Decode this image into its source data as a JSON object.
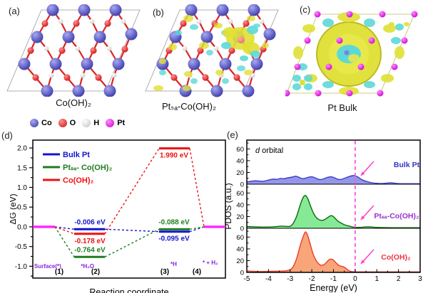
{
  "figure": {
    "letters": {
      "a": "(a)",
      "b": "(b)",
      "c": "(c)",
      "d": "(d)",
      "e": "(e)"
    }
  },
  "panels": {
    "a": {
      "caption": "Co(OH)₂"
    },
    "b": {
      "caption": "Ptₛₐ-Co(OH)₂"
    },
    "c": {
      "caption": "Pt Bulk"
    }
  },
  "atom_legend": {
    "items": [
      {
        "label": "Co",
        "color_light": "#a8a8f0",
        "color_dark": "#3434a8"
      },
      {
        "label": "O",
        "color_light": "#ff9090",
        "color_dark": "#cc0f0f"
      },
      {
        "label": "H",
        "color_light": "#ffffff",
        "color_dark": "#c0c0c0"
      },
      {
        "label": "Pt",
        "color_light": "#ff8aff",
        "color_dark": "#cc00cc"
      }
    ]
  },
  "colors": {
    "co_light": "#a8a8f0",
    "co_dark": "#3434a8",
    "o_light": "#ff9090",
    "o_dark": "#cc0f0f",
    "h_light": "#ffffff",
    "h_dark": "#c8c8c8",
    "pt_light": "#ff8aff",
    "pt_dark": "#cc00cc",
    "bond": "#dd2222",
    "iso_yellow": "#e0e034",
    "iso_cyan": "#5cd8d8",
    "cell_edge": "#999999"
  },
  "chart_data": [
    {
      "id": "free_energy_diagram",
      "type": "line",
      "xlabel": "Reaction coordinate",
      "ylabel": "ΔG (eV)",
      "ylim": [
        -1.3,
        2.2
      ],
      "yticks": [
        2.0,
        1.5,
        1.0,
        0.5,
        0.0,
        -0.5,
        -1.0
      ],
      "xticks": [
        "(1)",
        "(2)",
        "(3)",
        "(4)"
      ],
      "step_species": [
        "Surface(*)",
        "*H₂O",
        "*H",
        "* + H₂"
      ],
      "species_color": "#8822dd",
      "endpoints": {
        "value": 0.0,
        "color": "#ff22ff"
      },
      "series": [
        {
          "name": "Bulk Pt",
          "color": "#1414cc",
          "values": [
            0.0,
            -0.006,
            -0.095,
            0.0
          ],
          "labels": {
            "step2": "-0.006 eV",
            "step3": "-0.095 eV"
          },
          "label_pos": {
            "step2": "above",
            "step3": "below"
          }
        },
        {
          "name": "Ptₛₐ- Co(OH)₂",
          "color": "#1e7d1e",
          "values": [
            0.0,
            -0.764,
            -0.088,
            0.0
          ],
          "labels": {
            "step2": "-0.764 eV",
            "step3": "-0.088 eV"
          },
          "label_pos": {
            "step2": "above",
            "step3": "above"
          }
        },
        {
          "name": "Co(OH)₂",
          "color": "#ee1111",
          "values": [
            0.0,
            -0.178,
            1.99,
            0.0
          ],
          "labels": {
            "step2": "-0.178 eV",
            "step3": "1.990 eV"
          },
          "label_pos": {
            "step2": "below",
            "step3": "below"
          }
        }
      ],
      "legend_position": "top-left",
      "grid": false
    },
    {
      "id": "pdos",
      "type": "area",
      "xlabel": "Energy (eV)",
      "ylabel": "PDOS (a.u.)",
      "xlim": [
        -5,
        3
      ],
      "xticks": [
        -5,
        -4,
        -3,
        -2,
        -1,
        0,
        1,
        2,
        3
      ],
      "ylim": [
        0,
        75
      ],
      "yticks": [
        0,
        20,
        40,
        60
      ],
      "orbital_label": {
        "italic": "d",
        "rest": " orbital"
      },
      "fermi_line": {
        "x": 0,
        "color": "#ff55dd",
        "style": "dashed"
      },
      "arrow_color": "#ff44cc",
      "panels": [
        {
          "name": "Bulk Pt",
          "label_color": "#3333cc",
          "line_color": "#3b3bd0",
          "fill_color": "#9090e8",
          "points": [
            [
              -5,
              4
            ],
            [
              -4.8,
              5
            ],
            [
              -4.6,
              6
            ],
            [
              -4.4,
              5
            ],
            [
              -4.2,
              5
            ],
            [
              -4.0,
              7
            ],
            [
              -3.8,
              9
            ],
            [
              -3.6,
              8
            ],
            [
              -3.45,
              10
            ],
            [
              -3.3,
              9
            ],
            [
              -3.1,
              11
            ],
            [
              -2.9,
              12
            ],
            [
              -2.75,
              14
            ],
            [
              -2.6,
              12
            ],
            [
              -2.45,
              9
            ],
            [
              -2.3,
              10
            ],
            [
              -2.15,
              12
            ],
            [
              -2.0,
              13
            ],
            [
              -1.85,
              11
            ],
            [
              -1.7,
              8
            ],
            [
              -1.55,
              8
            ],
            [
              -1.4,
              10
            ],
            [
              -1.25,
              12
            ],
            [
              -1.1,
              13
            ],
            [
              -0.95,
              11
            ],
            [
              -0.8,
              8
            ],
            [
              -0.65,
              8
            ],
            [
              -0.5,
              10
            ],
            [
              -0.35,
              12
            ],
            [
              -0.2,
              14
            ],
            [
              -0.05,
              15
            ],
            [
              0.1,
              13
            ],
            [
              0.25,
              9
            ],
            [
              0.4,
              6
            ],
            [
              0.6,
              4
            ],
            [
              0.8,
              2
            ],
            [
              1.0,
              1.5
            ],
            [
              1.2,
              1
            ],
            [
              1.4,
              1.5
            ],
            [
              1.6,
              2.5
            ],
            [
              1.75,
              2
            ],
            [
              2.0,
              1
            ],
            [
              2.3,
              0.8
            ],
            [
              2.6,
              0.8
            ],
            [
              3,
              0.8
            ]
          ]
        },
        {
          "name": "Ptₛₐ-Co(OH)₂",
          "label_color": "#9933cc",
          "line_color": "#0b6b0b",
          "fill_color": "#7fe890",
          "points": [
            [
              -5,
              3
            ],
            [
              -4.5,
              2
            ],
            [
              -4.0,
              2
            ],
            [
              -3.7,
              2.5
            ],
            [
              -3.4,
              4
            ],
            [
              -3.2,
              3
            ],
            [
              -3.0,
              3
            ],
            [
              -2.9,
              6
            ],
            [
              -2.8,
              12
            ],
            [
              -2.7,
              20
            ],
            [
              -2.6,
              32
            ],
            [
              -2.5,
              44
            ],
            [
              -2.4,
              53
            ],
            [
              -2.3,
              57
            ],
            [
              -2.2,
              52
            ],
            [
              -2.1,
              42
            ],
            [
              -2.0,
              32
            ],
            [
              -1.9,
              24
            ],
            [
              -1.8,
              18
            ],
            [
              -1.65,
              14
            ],
            [
              -1.5,
              13
            ],
            [
              -1.35,
              16
            ],
            [
              -1.2,
              20
            ],
            [
              -1.1,
              22
            ],
            [
              -1.0,
              20
            ],
            [
              -0.9,
              16
            ],
            [
              -0.8,
              12
            ],
            [
              -0.7,
              10
            ],
            [
              -0.6,
              8
            ],
            [
              -0.5,
              6
            ],
            [
              -0.4,
              5
            ],
            [
              -0.3,
              4
            ],
            [
              -0.2,
              3
            ],
            [
              -0.1,
              2
            ],
            [
              0,
              1.5
            ],
            [
              0.2,
              1.5
            ],
            [
              0.4,
              2
            ],
            [
              0.6,
              2.5
            ],
            [
              0.8,
              2
            ],
            [
              1.0,
              1.5
            ],
            [
              1.5,
              1
            ],
            [
              2.0,
              1
            ],
            [
              2.5,
              1
            ],
            [
              3,
              1
            ]
          ]
        },
        {
          "name": "Co(OH)₂",
          "label_color": "#ee3344",
          "line_color": "#ee3b2a",
          "fill_color": "#f7a072",
          "points": [
            [
              -5,
              2.5
            ],
            [
              -4.6,
              1.5
            ],
            [
              -4.2,
              1.5
            ],
            [
              -3.8,
              2
            ],
            [
              -3.4,
              2
            ],
            [
              -3.1,
              3
            ],
            [
              -2.95,
              5
            ],
            [
              -2.85,
              10
            ],
            [
              -2.75,
              18
            ],
            [
              -2.65,
              30
            ],
            [
              -2.55,
              44
            ],
            [
              -2.45,
              56
            ],
            [
              -2.35,
              66
            ],
            [
              -2.28,
              70
            ],
            [
              -2.2,
              64
            ],
            [
              -2.1,
              52
            ],
            [
              -2.0,
              38
            ],
            [
              -1.9,
              27
            ],
            [
              -1.8,
              20
            ],
            [
              -1.7,
              15
            ],
            [
              -1.6,
              12
            ],
            [
              -1.5,
              12
            ],
            [
              -1.4,
              14
            ],
            [
              -1.3,
              18
            ],
            [
              -1.2,
              22
            ],
            [
              -1.1,
              23
            ],
            [
              -1.0,
              21
            ],
            [
              -0.9,
              17
            ],
            [
              -0.8,
              13
            ],
            [
              -0.7,
              11
            ],
            [
              -0.6,
              10
            ],
            [
              -0.5,
              9
            ],
            [
              -0.4,
              6
            ],
            [
              -0.3,
              3
            ],
            [
              -0.2,
              1.5
            ],
            [
              -0.1,
              1
            ],
            [
              0,
              0.8
            ],
            [
              0.5,
              0.8
            ],
            [
              1.0,
              0.8
            ],
            [
              1.5,
              0.8
            ],
            [
              2.0,
              0.8
            ],
            [
              2.5,
              0.8
            ],
            [
              3,
              0.8
            ]
          ]
        }
      ]
    }
  ]
}
